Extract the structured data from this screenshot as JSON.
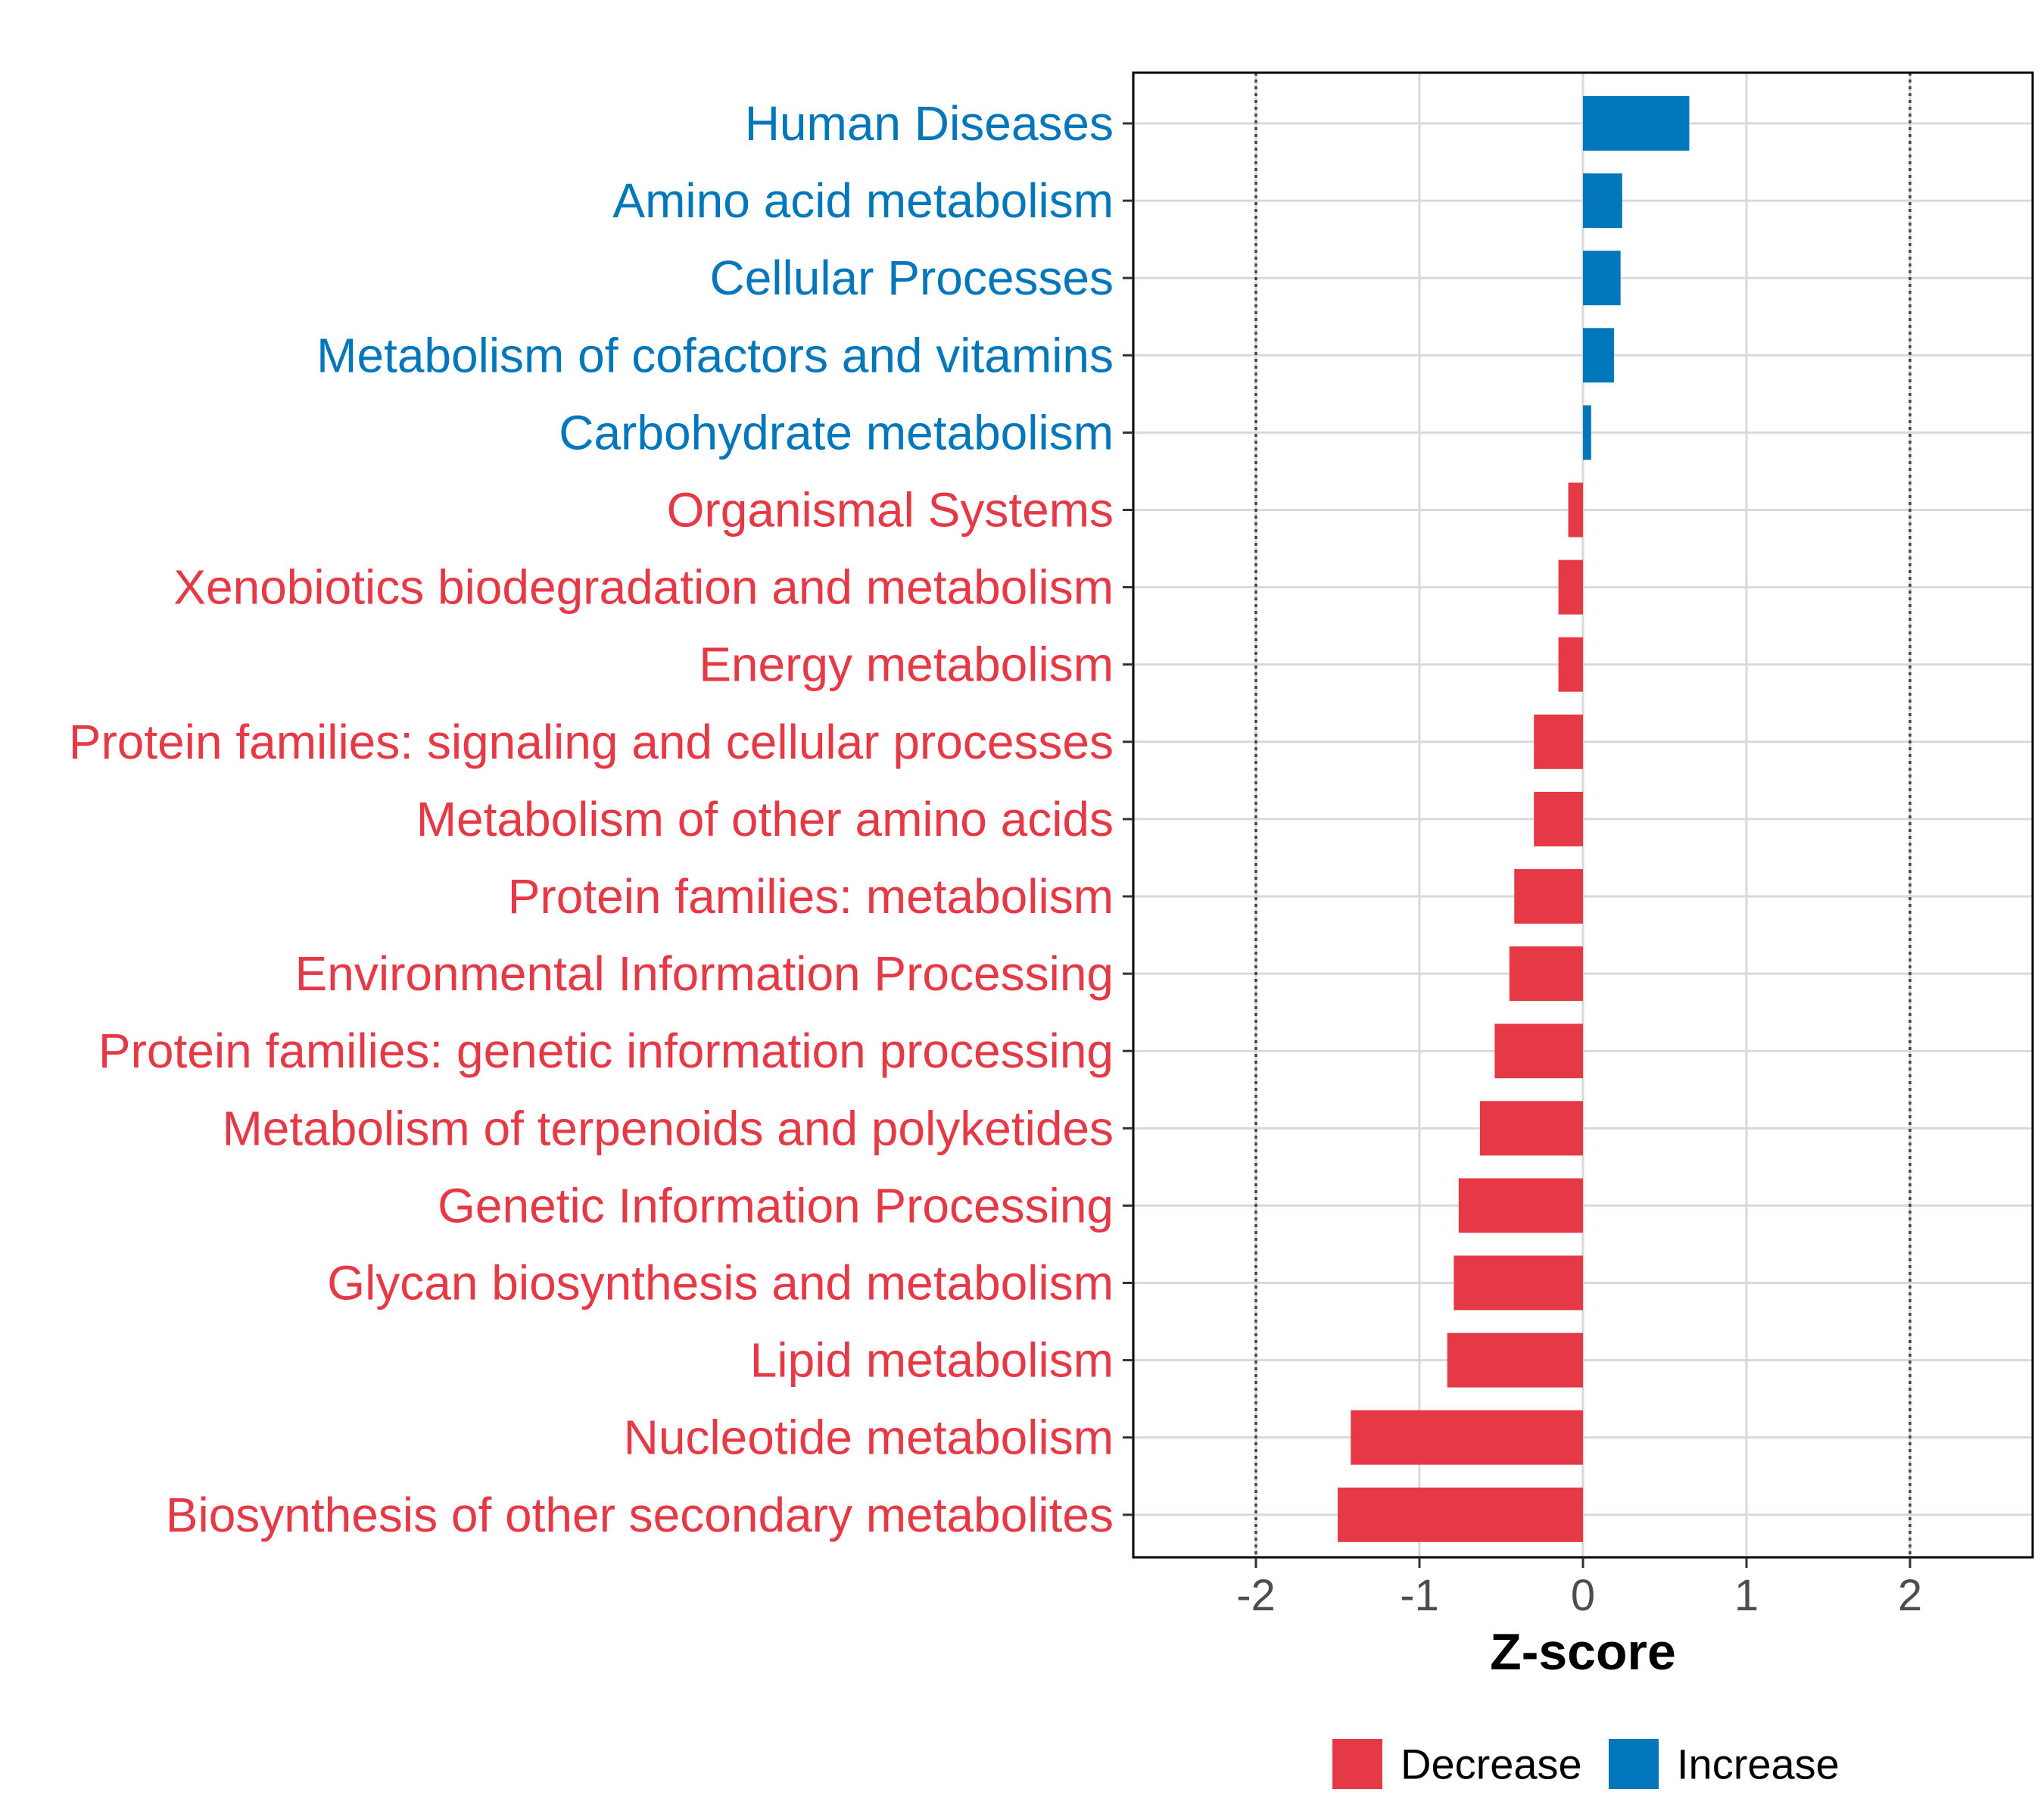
{
  "chart_data": {
    "type": "bar",
    "orientation": "horizontal",
    "xlabel": "Z-score",
    "xlim": [
      -2.75,
      2.75
    ],
    "xticks": [
      -2,
      -1,
      0,
      1,
      2
    ],
    "reference_lines": [
      -2,
      2
    ],
    "grid": true,
    "categories": [
      "Human Diseases",
      "Amino acid metabolism",
      "Cellular Processes",
      "Metabolism of cofactors and vitamins",
      "Carbohydrate metabolism",
      "Organismal Systems",
      "Xenobiotics biodegradation and metabolism",
      "Energy metabolism",
      "Protein families: signaling and cellular processes",
      "Metabolism of other amino acids",
      "Protein families: metabolism",
      "Environmental Information Processing",
      "Protein families: genetic information processing",
      "Metabolism of terpenoids and polyketides",
      "Genetic Information Processing",
      "Glycan biosynthesis and metabolism",
      "Lipid metabolism",
      "Nucleotide metabolism",
      "Biosynthesis of other secondary metabolites"
    ],
    "values": [
      0.65,
      0.24,
      0.23,
      0.19,
      0.05,
      -0.09,
      -0.15,
      -0.15,
      -0.3,
      -0.3,
      -0.42,
      -0.45,
      -0.54,
      -0.63,
      -0.76,
      -0.79,
      -0.83,
      -1.42,
      -1.5
    ],
    "groups": [
      "Increase",
      "Increase",
      "Increase",
      "Increase",
      "Increase",
      "Decrease",
      "Decrease",
      "Decrease",
      "Decrease",
      "Decrease",
      "Decrease",
      "Decrease",
      "Decrease",
      "Decrease",
      "Decrease",
      "Decrease",
      "Decrease",
      "Decrease",
      "Decrease"
    ],
    "legend": [
      {
        "name": "Decrease",
        "color": "#E63946"
      },
      {
        "name": "Increase",
        "color": "#0077BB"
      }
    ],
    "legend_position": "bottom"
  }
}
